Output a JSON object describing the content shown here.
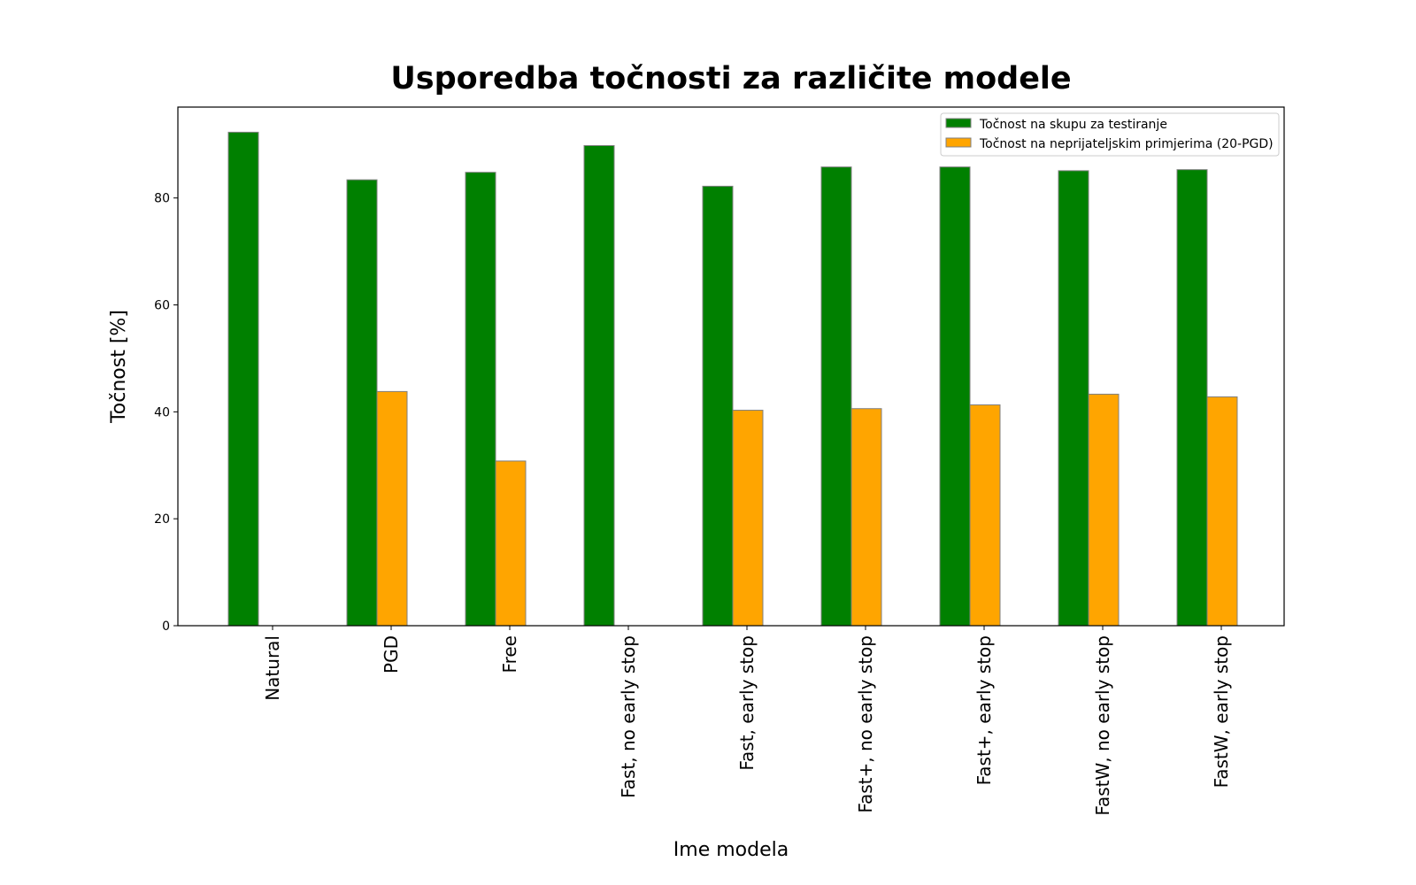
{
  "chart_data": {
    "type": "bar",
    "title": "Usporedba točnosti za različite modele",
    "xlabel": "Ime modela",
    "ylabel": "Točnost [%]",
    "ylim": [
      0,
      97
    ],
    "yticks": [
      0,
      20,
      40,
      60,
      80
    ],
    "grid": false,
    "legend_position": "top-right",
    "categories": [
      "Natural",
      "PGD",
      "Free",
      "Fast, no early stop",
      "Fast, early stop",
      "Fast+, no early stop",
      "Fast+, early stop",
      "FastW, no early stop",
      "FastW, early stop"
    ],
    "series": [
      {
        "name": "Točnost na skupu za testiranje",
        "color": "#008000",
        "values": [
          92.3,
          83.4,
          84.8,
          89.8,
          82.2,
          85.8,
          85.8,
          85.1,
          85.3
        ]
      },
      {
        "name": "Točnost na neprijateljskim primjerima (20-PGD)",
        "color": "#ffa500",
        "values": [
          0.0,
          43.8,
          30.8,
          0.0,
          40.3,
          40.6,
          41.3,
          43.3,
          42.8
        ]
      }
    ]
  }
}
